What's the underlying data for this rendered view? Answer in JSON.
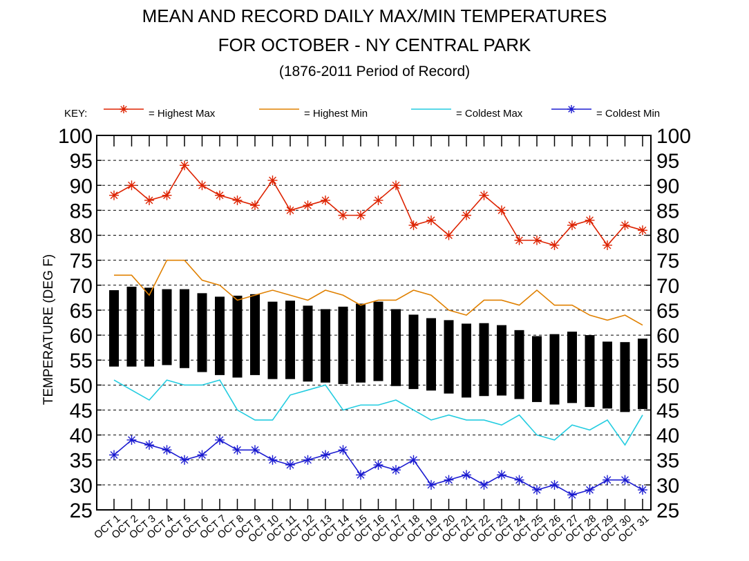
{
  "title_line1": "MEAN AND RECORD DAILY MAX/MIN TEMPERATURES",
  "title_line2": "FOR OCTOBER - NY CENTRAL PARK",
  "subtitle": "(1876-2011 Period of Record)",
  "key_label": "KEY:",
  "colors": {
    "highest_max": "#dd2200",
    "highest_min": "#e08000",
    "coldest_max": "#22cce0",
    "coldest_min": "#1a1ad0",
    "mean_bar": "#000000"
  },
  "chart_data": {
    "type": "line",
    "ylabel": "TEMPERATURE (DEG F)",
    "ylim": [
      25,
      100
    ],
    "yticks": [
      25,
      30,
      35,
      40,
      45,
      50,
      55,
      60,
      65,
      70,
      75,
      80,
      85,
      90,
      95,
      100
    ],
    "grid": true,
    "legend_position": "top",
    "categories": [
      "OCT 1",
      "OCT 2",
      "OCT 3",
      "OCT 4",
      "OCT 5",
      "OCT 6",
      "OCT 7",
      "OCT 8",
      "OCT 9",
      "OCT 10",
      "OCT 11",
      "OCT 12",
      "OCT 13",
      "OCT 14",
      "OCT 15",
      "OCT 16",
      "OCT 17",
      "OCT 18",
      "OCT 19",
      "OCT 20",
      "OCT 21",
      "OCT 22",
      "OCT 23",
      "OCT 24",
      "OCT 25",
      "OCT 26",
      "OCT 27",
      "OCT 28",
      "OCT 29",
      "OCT 30",
      "OCT 31"
    ],
    "series": [
      {
        "name": "= Highest Max",
        "key": "highest_max",
        "marker": true,
        "values": [
          88,
          90,
          87,
          88,
          94,
          90,
          88,
          87,
          86,
          91,
          85,
          86,
          87,
          84,
          84,
          87,
          90,
          82,
          83,
          80,
          84,
          88,
          85,
          79,
          79,
          78,
          82,
          83,
          78,
          82,
          81
        ]
      },
      {
        "name": "= Highest Min",
        "key": "highest_min",
        "marker": false,
        "values": [
          72,
          72,
          68,
          75,
          75,
          71,
          70,
          67,
          68,
          69,
          68,
          67,
          69,
          68,
          66,
          67,
          67,
          69,
          68,
          65,
          64,
          67,
          67,
          66,
          69,
          66,
          66,
          64,
          63,
          64,
          62
        ]
      },
      {
        "name": "= Coldest Max",
        "key": "coldest_max",
        "marker": false,
        "values": [
          51,
          49,
          47,
          51,
          50,
          50,
          51,
          45,
          43,
          43,
          48,
          49,
          50,
          45,
          46,
          46,
          47,
          45,
          43,
          44,
          43,
          43,
          42,
          44,
          40,
          39,
          42,
          41,
          43,
          38,
          44
        ]
      },
      {
        "name": "= Coldest Min",
        "key": "coldest_min",
        "marker": true,
        "values": [
          36,
          39,
          38,
          37,
          35,
          36,
          39,
          37,
          37,
          35,
          34,
          35,
          36,
          37,
          32,
          34,
          33,
          35,
          30,
          31,
          32,
          30,
          32,
          31,
          29,
          30,
          28,
          29,
          31,
          31,
          29
        ]
      }
    ],
    "mean_bars": {
      "high": [
        69,
        69.7,
        69.5,
        69.2,
        69.2,
        68.4,
        67.7,
        67.9,
        68.2,
        66.7,
        66.9,
        65.9,
        65.2,
        65.7,
        66.3,
        66.7,
        65.2,
        64.1,
        63.4,
        63,
        62.3,
        62.4,
        62,
        61,
        59.8,
        60.2,
        60.7,
        60,
        58.7,
        58.6,
        59.3
      ],
      "low": [
        53.7,
        53.7,
        53.7,
        54,
        53.4,
        52.6,
        52,
        51.5,
        52,
        51.2,
        51.2,
        50.7,
        50.5,
        50.2,
        50.5,
        50.8,
        49.8,
        49.2,
        48.9,
        48.3,
        47.5,
        47.8,
        47.9,
        47.2,
        46.6,
        46.1,
        46.4,
        45.6,
        45.3,
        44.6,
        45.2
      ]
    }
  }
}
